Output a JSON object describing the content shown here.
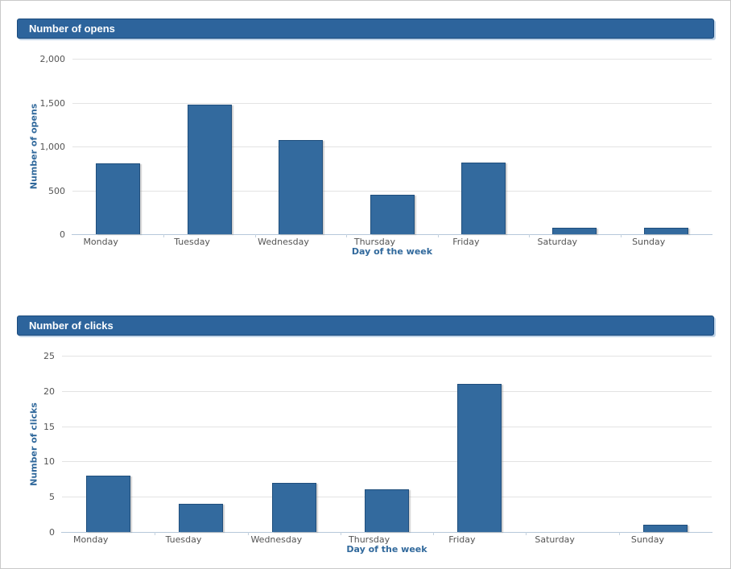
{
  "page": {
    "background": "#ffffff",
    "border_color": "#c9c9c9"
  },
  "colors": {
    "bar_fill": "#336a9e",
    "bar_border": "#1f4e7c",
    "header_background": "#2d649c",
    "header_border": "#1c4b7d",
    "header_text": "#ffffff",
    "axis_title_text": "#31699c",
    "tick_label_text": "#545454",
    "gridline": "#e3e3e3",
    "axis_line": "#b6c8da"
  },
  "chart_data": [
    {
      "type": "bar",
      "title": "Number of opens",
      "categories": [
        "Monday",
        "Tuesday",
        "Wednesday",
        "Thursday",
        "Friday",
        "Saturday",
        "Sunday"
      ],
      "values": [
        810,
        1480,
        1070,
        445,
        820,
        75,
        75
      ],
      "xlabel": "Day of the week",
      "ylabel": "Number of opens",
      "ylim": [
        0,
        2000
      ],
      "ytick_step": 500,
      "ytick_labels": [
        "0",
        "500",
        "1,000",
        "1,500",
        "2,000"
      ],
      "grid": true,
      "legend": "none"
    },
    {
      "type": "bar",
      "title": "Number of clicks",
      "categories": [
        "Monday",
        "Tuesday",
        "Wednesday",
        "Thursday",
        "Friday",
        "Saturday",
        "Sunday"
      ],
      "values": [
        8,
        4,
        7,
        6,
        21,
        0,
        1
      ],
      "xlabel": "Day of the week",
      "ylabel": "Number of clicks",
      "ylim": [
        0,
        25
      ],
      "ytick_step": 5,
      "ytick_labels": [
        "0",
        "5",
        "10",
        "15",
        "20",
        "25"
      ],
      "grid": true,
      "legend": "none"
    }
  ]
}
